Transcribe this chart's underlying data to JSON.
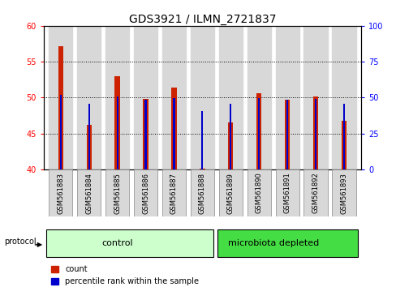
{
  "title": "GDS3921 / ILMN_2721837",
  "samples": [
    "GSM561883",
    "GSM561884",
    "GSM561885",
    "GSM561886",
    "GSM561887",
    "GSM561888",
    "GSM561889",
    "GSM561890",
    "GSM561891",
    "GSM561892",
    "GSM561893"
  ],
  "count_values": [
    57.2,
    46.2,
    53.0,
    49.8,
    51.4,
    40.1,
    46.5,
    50.6,
    49.7,
    50.1,
    46.8
  ],
  "percentile_values": [
    52,
    45.5,
    50.5,
    48.5,
    49.5,
    40.8,
    45.5,
    49.5,
    48.5,
    49.0,
    45.5
  ],
  "ylim_left": [
    40,
    60
  ],
  "ylim_right": [
    0,
    100
  ],
  "yticks_left": [
    40,
    45,
    50,
    55,
    60
  ],
  "yticks_right": [
    0,
    25,
    50,
    75,
    100
  ],
  "red_color": "#cc2200",
  "blue_color": "#0000cc",
  "control_samples_n": 6,
  "microbiota_samples_n": 5,
  "control_label": "control",
  "microbiota_label": "microbiota depleted",
  "protocol_label": "protocol",
  "legend_count": "count",
  "legend_percentile": "percentile rank within the sample",
  "bg_color": "#ffffff",
  "control_bg": "#ccffcc",
  "microbiota_bg": "#44dd44",
  "bar_area_bg": "#d8d8d8",
  "title_fontsize": 10,
  "tick_fontsize": 7,
  "sample_fontsize": 6
}
